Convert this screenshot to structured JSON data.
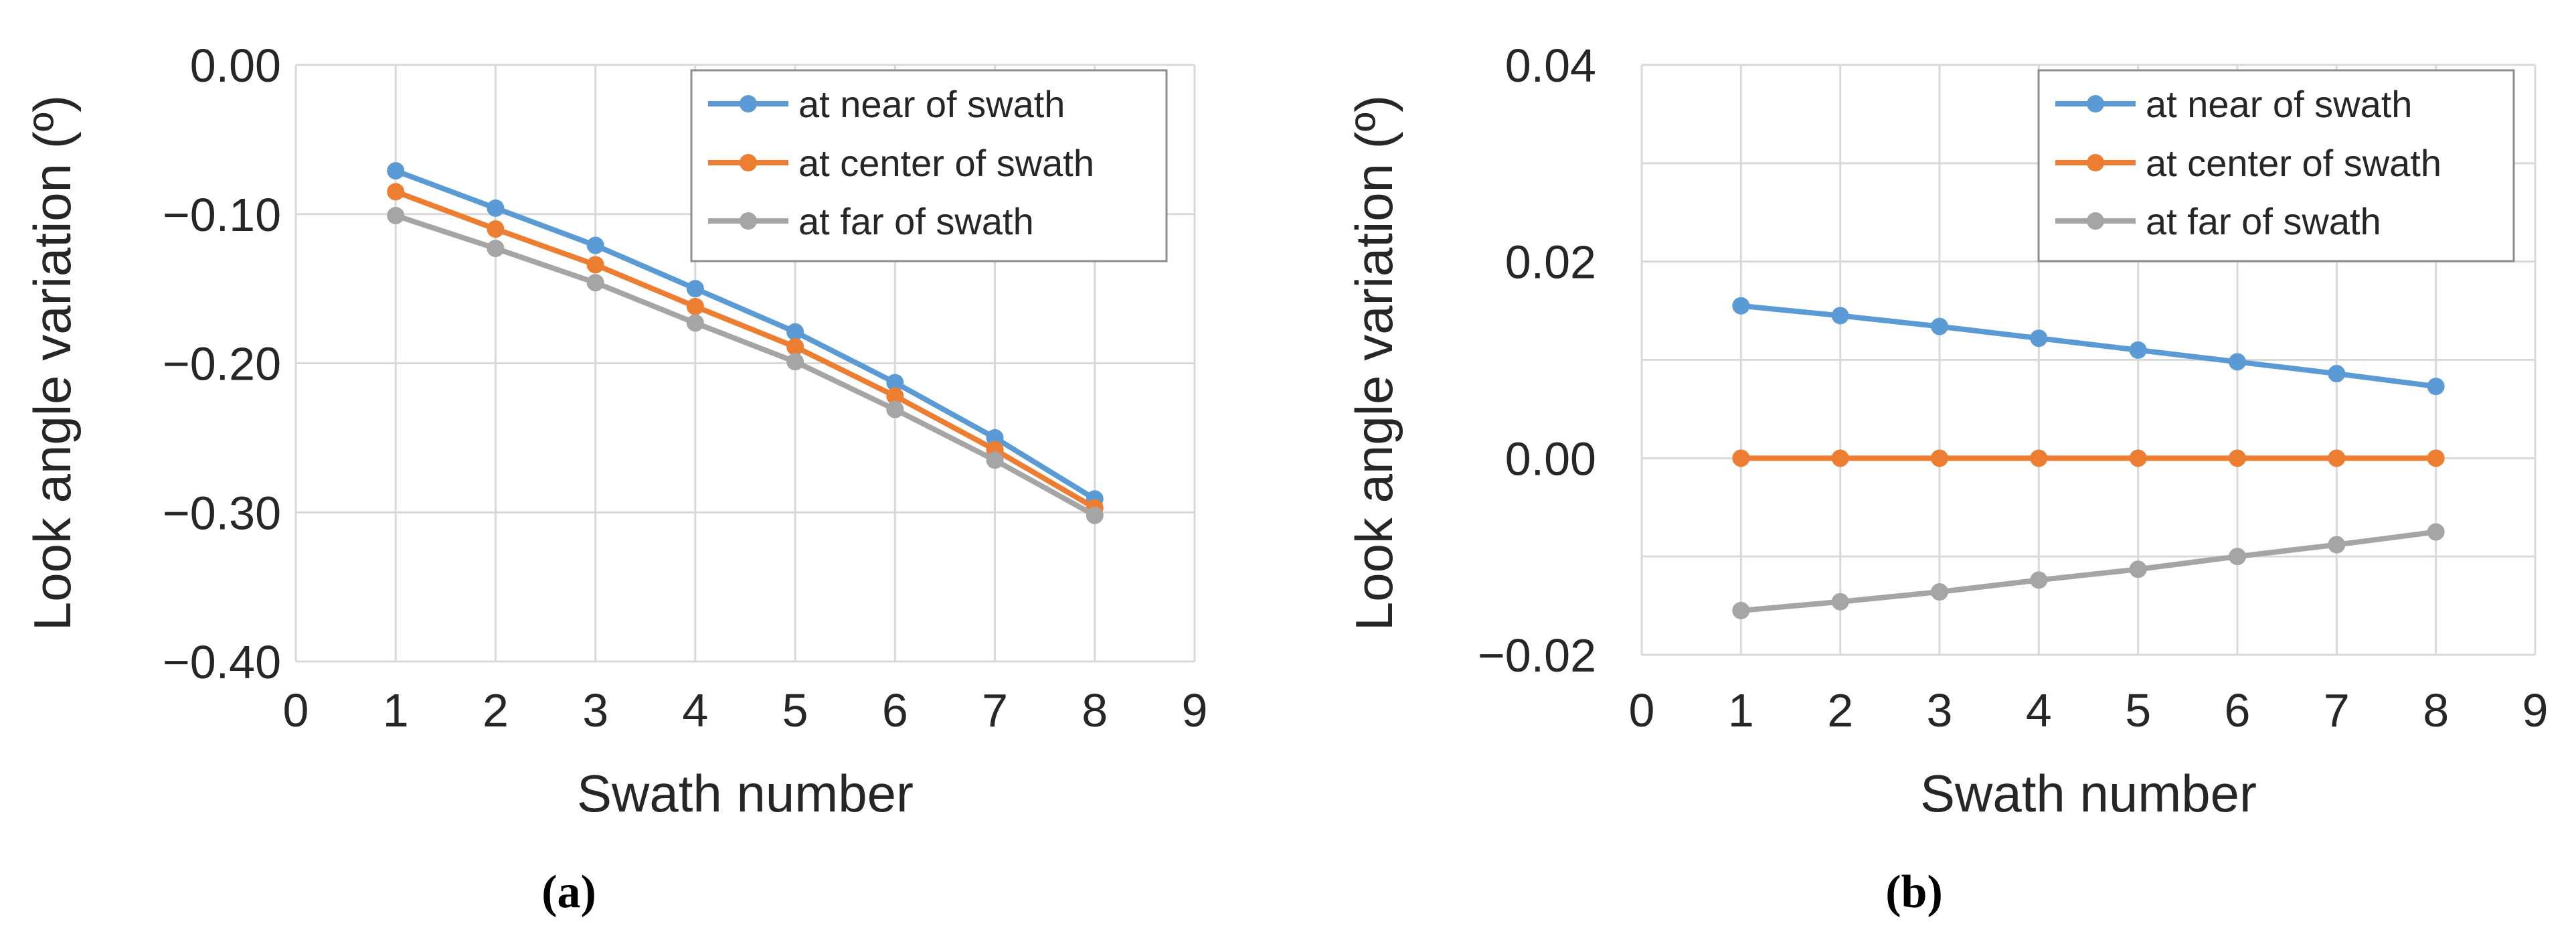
{
  "chart_data": [
    {
      "type": "line",
      "panel_label": "(a)",
      "xlabel": "Swath number",
      "ylabel": "Look angle variation (º)",
      "xlim": [
        0,
        9
      ],
      "ylim": [
        -0.4,
        0.0
      ],
      "x_ticks": [
        "0",
        "1",
        "2",
        "3",
        "4",
        "5",
        "6",
        "7",
        "8",
        "9"
      ],
      "y_ticks": [
        "0.00",
        "−0.10",
        "−0.20",
        "−0.30",
        "−0.40"
      ],
      "y_tick_values": [
        0.0,
        -0.1,
        -0.2,
        -0.3,
        -0.4
      ],
      "grid": true,
      "legend_position": "top-right",
      "x": [
        1,
        2,
        3,
        4,
        5,
        6,
        7,
        8
      ],
      "series": [
        {
          "name": "at near of swath",
          "color": "#5b9bd5",
          "values": [
            -0.071,
            -0.096,
            -0.121,
            -0.15,
            -0.179,
            -0.213,
            -0.25,
            -0.291
          ]
        },
        {
          "name": "at center of swath",
          "color": "#ed7d31",
          "values": [
            -0.085,
            -0.11,
            -0.134,
            -0.162,
            -0.189,
            -0.222,
            -0.258,
            -0.297
          ]
        },
        {
          "name": "at far of swath",
          "color": "#a5a5a5",
          "values": [
            -0.101,
            -0.123,
            -0.146,
            -0.173,
            -0.199,
            -0.231,
            -0.265,
            -0.302
          ]
        }
      ]
    },
    {
      "type": "line",
      "panel_label": "(b)",
      "xlabel": "Swath number",
      "ylabel": "Look angle variation (º)",
      "xlim": [
        0,
        9
      ],
      "ylim": [
        -0.02,
        0.04
      ],
      "x_ticks": [
        "0",
        "1",
        "2",
        "3",
        "4",
        "5",
        "6",
        "7",
        "8",
        "9"
      ],
      "y_ticks": [
        "0.04",
        "0.02",
        "0.00",
        "−0.02"
      ],
      "y_tick_values": [
        0.04,
        0.02,
        0.0,
        -0.02
      ],
      "minor_y_grid_values": [
        0.03,
        0.01,
        -0.01
      ],
      "grid": true,
      "legend_position": "top-right",
      "x": [
        1,
        2,
        3,
        4,
        5,
        6,
        7,
        8
      ],
      "series": [
        {
          "name": "at near of swath",
          "color": "#5b9bd5",
          "values": [
            0.0155,
            0.0145,
            0.0134,
            0.0122,
            0.011,
            0.0098,
            0.0086,
            0.0073
          ]
        },
        {
          "name": "at center of swath",
          "color": "#ed7d31",
          "values": [
            0.0,
            0.0,
            0.0,
            0.0,
            0.0,
            0.0,
            0.0,
            0.0
          ]
        },
        {
          "name": "at far of swath",
          "color": "#a5a5a5",
          "values": [
            -0.0155,
            -0.0146,
            -0.0136,
            -0.0124,
            -0.0113,
            -0.01,
            -0.0088,
            -0.0075
          ]
        }
      ]
    }
  ]
}
